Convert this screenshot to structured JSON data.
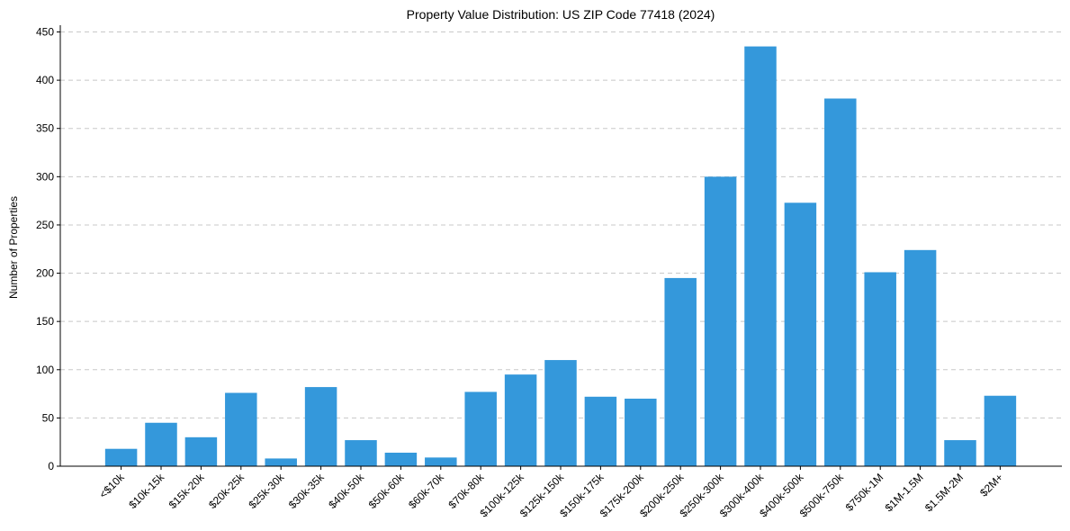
{
  "chart_data": {
    "type": "bar",
    "title": "Property Value Distribution: US ZIP Code 77418 (2024)",
    "xlabel": "",
    "ylabel": "Number of Properties",
    "ylim": [
      0,
      457
    ],
    "yticks": [
      0,
      50,
      100,
      150,
      200,
      250,
      300,
      350,
      400,
      450
    ],
    "grid": true,
    "bar_color": "#3498db",
    "categories": [
      "<$10k",
      "$10k-15k",
      "$15k-20k",
      "$20k-25k",
      "$25k-30k",
      "$30k-35k",
      "$40k-50k",
      "$50k-60k",
      "$60k-70k",
      "$70k-80k",
      "$100k-125k",
      "$125k-150k",
      "$150k-175k",
      "$175k-200k",
      "$200k-250k",
      "$250k-300k",
      "$300k-400k",
      "$400k-500k",
      "$500k-750k",
      "$750k-1M",
      "$1M-1.5M",
      "$1.5M-2M",
      "$2M+"
    ],
    "values": [
      18,
      45,
      30,
      76,
      8,
      82,
      27,
      14,
      9,
      77,
      95,
      110,
      72,
      70,
      195,
      300,
      435,
      273,
      381,
      201,
      224,
      27,
      73
    ]
  }
}
